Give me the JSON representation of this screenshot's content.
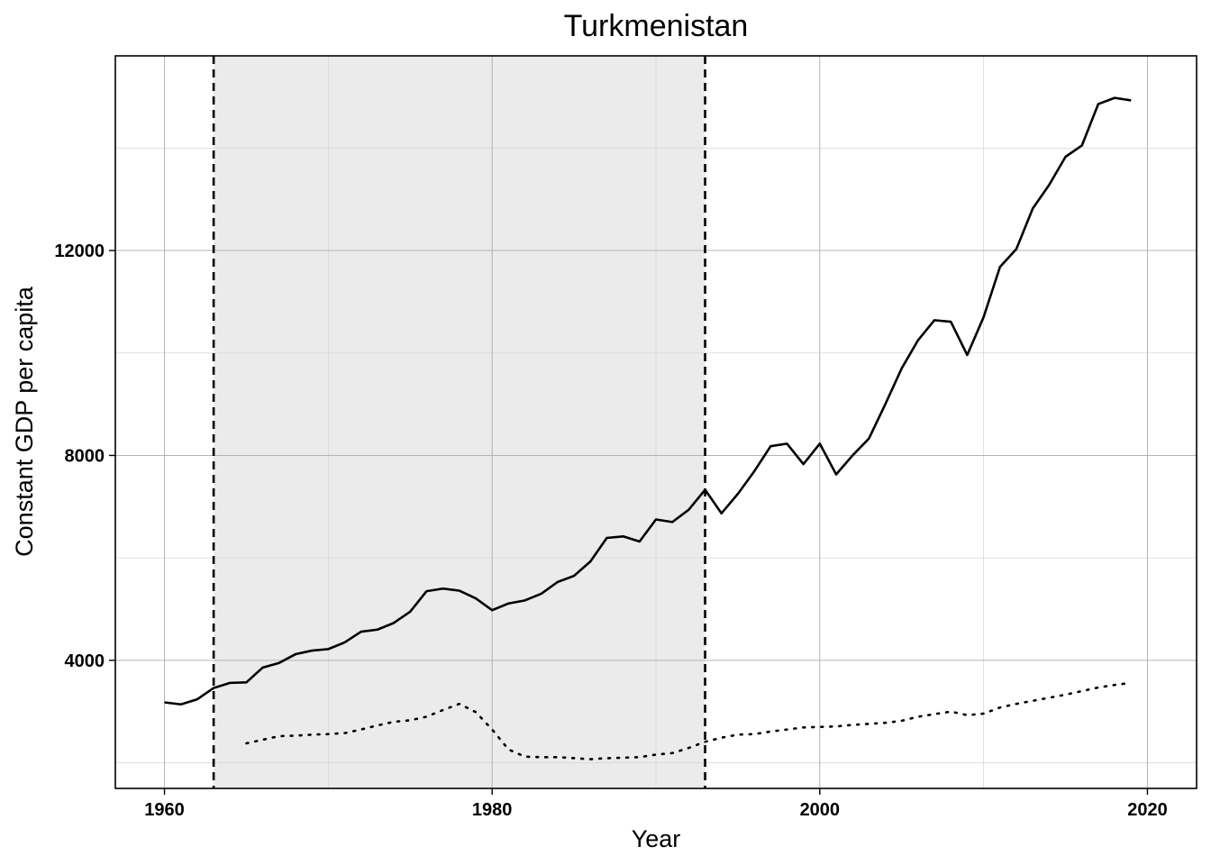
{
  "chart_data": {
    "type": "line",
    "title": "Turkmenistan",
    "xlabel": "Year",
    "ylabel": "Constant GDP per capita",
    "xlim": [
      1957,
      2023
    ],
    "ylim": [
      1500,
      15800
    ],
    "x_ticks": [
      1960,
      1980,
      2000,
      2020
    ],
    "y_ticks": [
      4000,
      8000,
      12000
    ],
    "x_tick_labels": [
      "1960",
      "1980",
      "2000",
      "2020"
    ],
    "y_tick_labels": [
      "4000",
      "8000",
      "12000"
    ],
    "grid": true,
    "legend": "none",
    "shaded_period": {
      "start": 1963,
      "end": 1993,
      "color": "#ebebeb"
    },
    "vlines": [
      1963,
      1993
    ],
    "series": [
      {
        "style": "solid",
        "x": [
          1960,
          1961,
          1962,
          1963,
          1964,
          1965,
          1966,
          1967,
          1968,
          1969,
          1970,
          1971,
          1972,
          1973,
          1974,
          1975,
          1976,
          1977,
          1978,
          1979,
          1980,
          1981,
          1982,
          1983,
          1984,
          1985,
          1986,
          1987,
          1988,
          1989,
          1990,
          1991,
          1992,
          1993,
          1994,
          1995,
          1996,
          1997,
          1998,
          1999,
          2000,
          2001,
          2002,
          2003,
          2004,
          2005,
          2006,
          2007,
          2008,
          2009,
          2010,
          2011,
          2012,
          2013,
          2014,
          2015,
          2016,
          2017,
          2018,
          2019
        ],
        "values": [
          3180,
          3140,
          3240,
          3460,
          3560,
          3570,
          3860,
          3950,
          4120,
          4190,
          4220,
          4350,
          4560,
          4600,
          4730,
          4950,
          5350,
          5400,
          5360,
          5210,
          4980,
          5110,
          5170,
          5300,
          5530,
          5650,
          5930,
          6390,
          6420,
          6320,
          6750,
          6700,
          6940,
          7330,
          6870,
          7250,
          7690,
          8180,
          8230,
          7830,
          8230,
          7630,
          8000,
          8330,
          9000,
          9700,
          10250,
          10640,
          10610,
          9960,
          10700,
          11680,
          12030,
          12820,
          13280,
          13830,
          14050,
          14860,
          14980,
          14930
        ]
      },
      {
        "style": "dotted",
        "x": [
          1965,
          1966,
          1967,
          1968,
          1969,
          1970,
          1971,
          1972,
          1973,
          1974,
          1975,
          1976,
          1977,
          1978,
          1979,
          1980,
          1981,
          1982,
          1983,
          1984,
          1985,
          1986,
          1987,
          1988,
          1989,
          1990,
          1991,
          1992,
          1993,
          1994,
          1995,
          1996,
          1997,
          1998,
          1999,
          2000,
          2001,
          2002,
          2003,
          2004,
          2005,
          2006,
          2007,
          2008,
          2009,
          2010,
          2011,
          2012,
          2013,
          2014,
          2015,
          2016,
          2017,
          2018,
          2019
        ],
        "values": [
          2380,
          2450,
          2520,
          2530,
          2550,
          2560,
          2580,
          2650,
          2730,
          2800,
          2830,
          2900,
          3030,
          3150,
          2990,
          2650,
          2260,
          2120,
          2110,
          2110,
          2090,
          2070,
          2090,
          2100,
          2110,
          2160,
          2190,
          2290,
          2410,
          2490,
          2550,
          2560,
          2610,
          2650,
          2690,
          2700,
          2710,
          2740,
          2760,
          2780,
          2820,
          2900,
          2950,
          3000,
          2930,
          2960,
          3080,
          3150,
          3210,
          3270,
          3330,
          3400,
          3470,
          3520,
          3560
        ]
      }
    ]
  }
}
